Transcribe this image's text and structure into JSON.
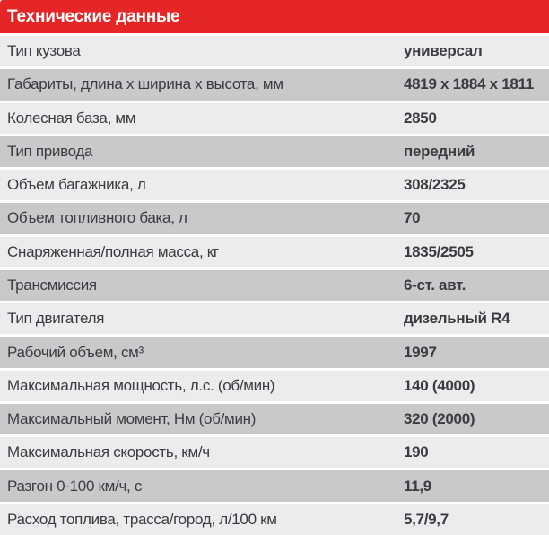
{
  "header": {
    "title": "Технические данные"
  },
  "colors": {
    "header_bg": "#e42627",
    "header_text": "#ffffff",
    "row_light": "#ececec",
    "row_dark": "#c9c9c9",
    "text": "#3b3b40",
    "gap": "#ffffff"
  },
  "table": {
    "rows": [
      {
        "label": "Тип кузова",
        "value": "универсал"
      },
      {
        "label": "Габариты, длина х ширина х высота, мм",
        "value": "4819 х 1884 х 1811"
      },
      {
        "label": "Колесная база, мм",
        "value": "2850"
      },
      {
        "label": "Тип привода",
        "value": "передний"
      },
      {
        "label": "Объем багажника, л",
        "value": "308/2325"
      },
      {
        "label": "Объем топливного бака, л",
        "value": "70"
      },
      {
        "label": "Снаряженная/полная масса, кг",
        "value": "1835/2505"
      },
      {
        "label": "Трансмиссия",
        "value": "6-ст. авт."
      },
      {
        "label": "Тип двигателя",
        "value": "дизельный R4"
      },
      {
        "label": "Рабочий объем, см³",
        "value": "1997"
      },
      {
        "label": "Максимальная мощность, л.с. (об/мин)",
        "value": "140 (4000)"
      },
      {
        "label": "Максимальный момент, Нм (об/мин)",
        "value": "320 (2000)"
      },
      {
        "label": "Максимальная скорость, км/ч",
        "value": "190"
      },
      {
        "label": "Разгон 0-100 км/ч, с",
        "value": "11,9"
      },
      {
        "label": "Расход топлива, трасса/город, л/100 км",
        "value": "5,7/9,7"
      }
    ]
  }
}
